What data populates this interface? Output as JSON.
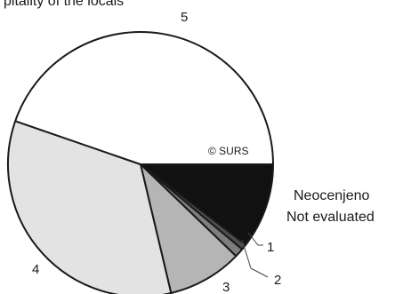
{
  "chart_data": {
    "type": "pie",
    "title": "pitality of the locals",
    "watermark": "© SURS",
    "categories": [
      "Neocenjeno / Not evaluated",
      "1",
      "2",
      "3",
      "4",
      "5"
    ],
    "values": [
      10.4,
      0.7,
      1.1,
      9.1,
      34.0,
      44.7
    ],
    "labels": {
      "neocenjeno": "Neocenjeno",
      "not_evaluated": "Not evaluated",
      "l1": "1",
      "l2": "2",
      "l3": "3",
      "l4": "4",
      "l5": "5"
    },
    "colors": {
      "neocenjeno": "#111111",
      "l1": "#4d4d4d",
      "l2": "#7d7d7d",
      "l3": "#b5b5b5",
      "l4": "#e3e3e3",
      "l5": "#ffffff",
      "outline": "#1a1a1a"
    }
  }
}
